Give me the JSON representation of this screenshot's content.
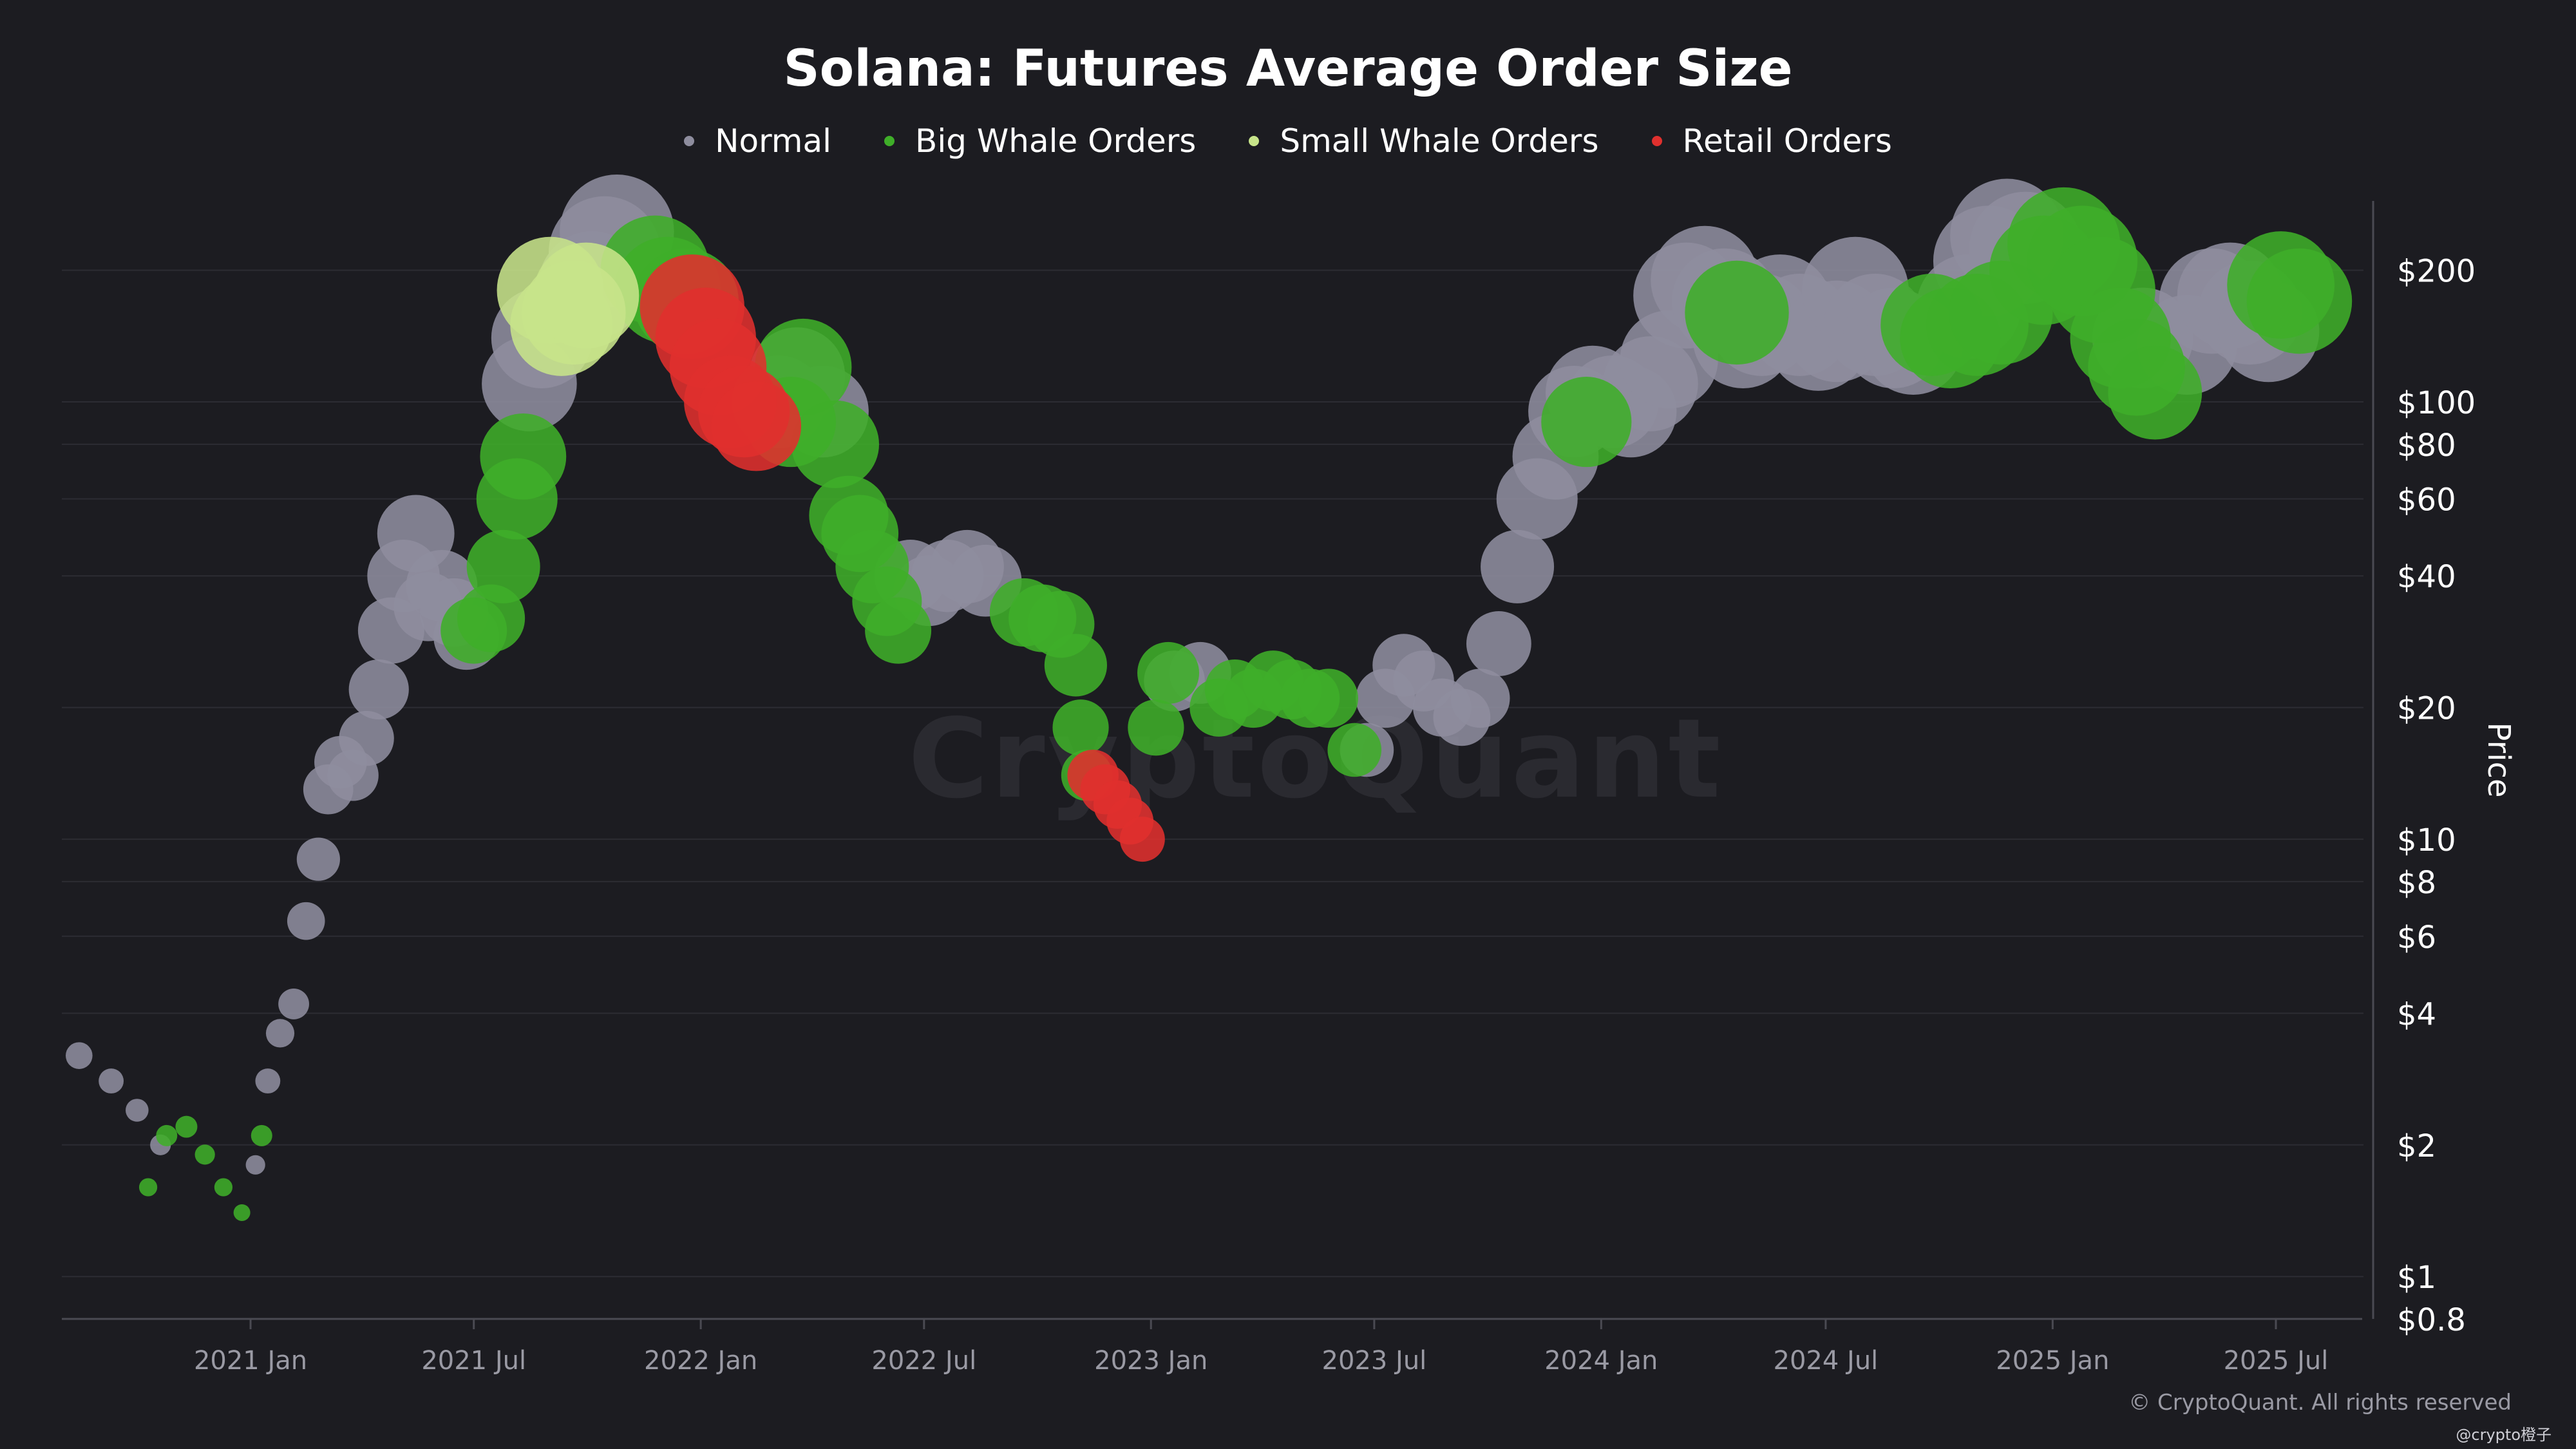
{
  "chart_data": {
    "type": "scatter",
    "title": "Solana: Futures Average Order Size",
    "ylabel": "Price",
    "yscale": "log",
    "ylim": [
      0.8,
      300
    ],
    "xlim": [
      "2020-08-01",
      "2025-09-10"
    ],
    "y_ticks": [
      {
        "value": 0.8,
        "label": "$0.8"
      },
      {
        "value": 1,
        "label": "$1"
      },
      {
        "value": 2,
        "label": "$2"
      },
      {
        "value": 4,
        "label": "$4"
      },
      {
        "value": 6,
        "label": "$6"
      },
      {
        "value": 8,
        "label": "$8"
      },
      {
        "value": 10,
        "label": "$10"
      },
      {
        "value": 20,
        "label": "$20"
      },
      {
        "value": 40,
        "label": "$40"
      },
      {
        "value": 60,
        "label": "$60"
      },
      {
        "value": 80,
        "label": "$80"
      },
      {
        "value": 100,
        "label": "$100"
      },
      {
        "value": 200,
        "label": "$200"
      }
    ],
    "x_ticks": [
      {
        "date": "2021-01-01",
        "label": "2021 Jan"
      },
      {
        "date": "2021-07-01",
        "label": "2021 Jul"
      },
      {
        "date": "2022-01-01",
        "label": "2022 Jan"
      },
      {
        "date": "2022-07-01",
        "label": "2022 Jul"
      },
      {
        "date": "2023-01-01",
        "label": "2023 Jan"
      },
      {
        "date": "2023-07-01",
        "label": "2023 Jul"
      },
      {
        "date": "2024-01-01",
        "label": "2024 Jan"
      },
      {
        "date": "2024-07-01",
        "label": "2024 Jul"
      },
      {
        "date": "2025-01-01",
        "label": "2025 Jan"
      },
      {
        "date": "2025-07-01",
        "label": "2025 Jul"
      }
    ],
    "series": [
      {
        "name": "Normal",
        "color": "#8e8d9e",
        "points": [
          [
            "2020-08-15",
            3.2
          ],
          [
            "2020-09-10",
            2.8
          ],
          [
            "2020-10-01",
            2.4
          ],
          [
            "2020-10-20",
            2.0
          ],
          [
            "2021-01-05",
            1.8
          ],
          [
            "2021-01-15",
            2.8
          ],
          [
            "2021-01-25",
            3.6
          ],
          [
            "2021-02-05",
            4.2
          ],
          [
            "2021-02-15",
            6.5
          ],
          [
            "2021-02-25",
            9.0
          ],
          [
            "2021-03-05",
            13.0
          ],
          [
            "2021-03-15",
            15.0
          ],
          [
            "2021-03-25",
            14.0
          ],
          [
            "2021-04-05",
            17.0
          ],
          [
            "2021-04-15",
            22.0
          ],
          [
            "2021-04-25",
            30.0
          ],
          [
            "2021-05-05",
            40.0
          ],
          [
            "2021-05-15",
            50.0
          ],
          [
            "2021-05-25",
            34.0
          ],
          [
            "2021-06-05",
            38.0
          ],
          [
            "2021-06-15",
            33.0
          ],
          [
            "2021-06-25",
            29.0
          ],
          [
            "2021-08-15",
            110.0
          ],
          [
            "2021-08-25",
            140.0
          ],
          [
            "2021-10-05",
            185.0
          ],
          [
            "2021-10-15",
            220.0
          ],
          [
            "2021-10-25",
            245.0
          ],
          [
            "2022-03-05",
            100.0
          ],
          [
            "2022-03-20",
            115.0
          ],
          [
            "2022-04-10",
            95.0
          ],
          [
            "2022-06-20",
            40.0
          ],
          [
            "2022-07-05",
            37.0
          ],
          [
            "2022-07-20",
            40.0
          ],
          [
            "2022-08-05",
            42.0
          ],
          [
            "2022-08-20",
            39.0
          ],
          [
            "2023-01-20",
            23.0
          ],
          [
            "2023-02-10",
            24.0
          ],
          [
            "2023-06-25",
            16.0
          ],
          [
            "2023-07-10",
            21.0
          ],
          [
            "2023-07-25",
            25.0
          ],
          [
            "2023-08-10",
            23.0
          ],
          [
            "2023-08-25",
            20.0
          ],
          [
            "2023-09-10",
            19.0
          ],
          [
            "2023-09-25",
            21.0
          ],
          [
            "2023-10-10",
            28.0
          ],
          [
            "2023-10-25",
            42.0
          ],
          [
            "2023-11-10",
            60.0
          ],
          [
            "2023-11-25",
            75.0
          ],
          [
            "2023-12-10",
            95.0
          ],
          [
            "2023-12-25",
            105.0
          ],
          [
            "2024-01-10",
            100.0
          ],
          [
            "2024-01-25",
            95.0
          ],
          [
            "2024-02-10",
            110.0
          ],
          [
            "2024-02-25",
            125.0
          ],
          [
            "2024-03-10",
            175.0
          ],
          [
            "2024-03-25",
            190.0
          ],
          [
            "2024-04-10",
            170.0
          ],
          [
            "2024-04-25",
            140.0
          ],
          [
            "2024-05-10",
            150.0
          ],
          [
            "2024-05-25",
            165.0
          ],
          [
            "2024-06-10",
            150.0
          ],
          [
            "2024-06-25",
            138.0
          ],
          [
            "2024-07-10",
            145.0
          ],
          [
            "2024-07-25",
            180.0
          ],
          [
            "2024-08-10",
            150.0
          ],
          [
            "2024-08-25",
            140.0
          ],
          [
            "2024-09-10",
            135.0
          ],
          [
            "2024-10-25",
            165.0
          ],
          [
            "2024-11-10",
            210.0
          ],
          [
            "2024-11-25",
            240.0
          ],
          [
            "2024-12-10",
            225.0
          ],
          [
            "2025-03-15",
            140.0
          ],
          [
            "2025-04-20",
            135.0
          ],
          [
            "2025-05-10",
            170.0
          ],
          [
            "2025-05-25",
            175.0
          ],
          [
            "2025-06-10",
            160.0
          ],
          [
            "2025-06-25",
            145.0
          ]
        ]
      },
      {
        "name": "Big Whale Orders",
        "color": "#3fae29",
        "points": [
          [
            "2020-10-10",
            1.6
          ],
          [
            "2020-10-25",
            2.1
          ],
          [
            "2020-11-10",
            2.2
          ],
          [
            "2020-11-25",
            1.9
          ],
          [
            "2020-12-10",
            1.6
          ],
          [
            "2020-12-25",
            1.4
          ],
          [
            "2021-01-10",
            2.1
          ],
          [
            "2021-07-01",
            30.0
          ],
          [
            "2021-07-15",
            32.0
          ],
          [
            "2021-07-25",
            42.0
          ],
          [
            "2021-08-05",
            60.0
          ],
          [
            "2021-08-10",
            75.0
          ],
          [
            "2021-11-25",
            200.0
          ],
          [
            "2021-12-05",
            180.0
          ],
          [
            "2021-12-20",
            170.0
          ],
          [
            "2022-03-15",
            90.0
          ],
          [
            "2022-03-25",
            120.0
          ],
          [
            "2022-04-20",
            80.0
          ],
          [
            "2022-05-01",
            55.0
          ],
          [
            "2022-05-10",
            50.0
          ],
          [
            "2022-05-20",
            42.0
          ],
          [
            "2022-06-01",
            35.0
          ],
          [
            "2022-06-10",
            30.0
          ],
          [
            "2022-09-20",
            33.0
          ],
          [
            "2022-10-05",
            32.0
          ],
          [
            "2022-10-20",
            31.0
          ],
          [
            "2022-11-01",
            25.0
          ],
          [
            "2022-11-05",
            18.0
          ],
          [
            "2022-11-10",
            14.0
          ],
          [
            "2023-01-05",
            18.0
          ],
          [
            "2023-01-15",
            24.0
          ],
          [
            "2023-02-25",
            20.0
          ],
          [
            "2023-03-10",
            22.0
          ],
          [
            "2023-03-25",
            21.0
          ],
          [
            "2023-04-10",
            23.0
          ],
          [
            "2023-04-25",
            22.0
          ],
          [
            "2023-05-10",
            21.0
          ],
          [
            "2023-05-25",
            21.0
          ],
          [
            "2023-06-15",
            16.0
          ],
          [
            "2023-12-20",
            90.0
          ],
          [
            "2024-04-20",
            160.0
          ],
          [
            "2024-09-25",
            150.0
          ],
          [
            "2024-10-10",
            140.0
          ],
          [
            "2024-11-01",
            150.0
          ],
          [
            "2024-11-20",
            160.0
          ],
          [
            "2024-12-25",
            200.0
          ],
          [
            "2025-01-10",
            230.0
          ],
          [
            "2025-01-25",
            210.0
          ],
          [
            "2025-02-10",
            180.0
          ],
          [
            "2025-02-25",
            140.0
          ],
          [
            "2025-03-10",
            120.0
          ],
          [
            "2025-03-25",
            105.0
          ],
          [
            "2025-07-05",
            185.0
          ],
          [
            "2025-07-20",
            170.0
          ]
        ]
      },
      {
        "name": "Small Whale Orders",
        "color": "#c7e48a",
        "points": [
          [
            "2021-09-01",
            180.0
          ],
          [
            "2021-09-10",
            150.0
          ],
          [
            "2021-09-20",
            160.0
          ],
          [
            "2021-09-30",
            175.0
          ]
        ]
      },
      {
        "name": "Retail Orders",
        "color": "#e0302e",
        "points": [
          [
            "2021-12-25",
            165.0
          ],
          [
            "2022-01-05",
            140.0
          ],
          [
            "2022-01-15",
            120.0
          ],
          [
            "2022-01-25",
            100.0
          ],
          [
            "2022-02-05",
            95.0
          ],
          [
            "2022-02-15",
            88.0
          ],
          [
            "2022-11-15",
            14.0
          ],
          [
            "2022-11-25",
            13.0
          ],
          [
            "2022-12-05",
            12.0
          ],
          [
            "2022-12-15",
            11.0
          ],
          [
            "2022-12-25",
            10.0
          ]
        ]
      }
    ]
  },
  "watermark": "CryptoQuant",
  "copyright": "© CryptoQuant. All rights reserved",
  "corner_tag": "@crypto橙子"
}
